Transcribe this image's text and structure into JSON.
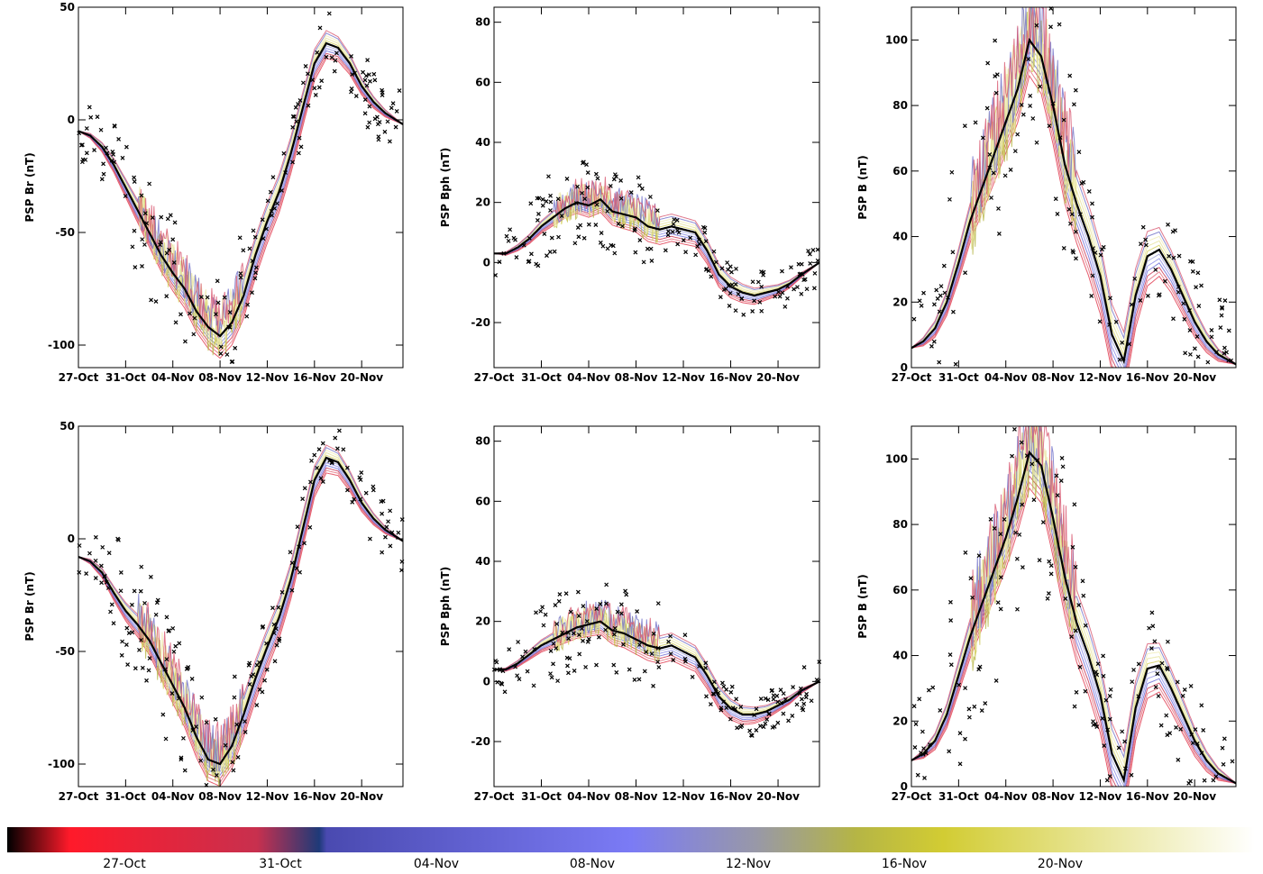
{
  "chart_data": {
    "figure_layout": "2x3 grid",
    "x_tick_labels": [
      "27-Oct",
      "31-Oct",
      "04-Nov",
      "08-Nov",
      "12-Nov",
      "16-Nov",
      "20-Nov"
    ],
    "x_tick_days": [
      0,
      4,
      8,
      12,
      16,
      20,
      24
    ],
    "x_range_days": [
      0,
      27.5
    ],
    "panels": [
      {
        "type": "line",
        "ylabel": "PSP Br (nT)",
        "ylim": [
          -110,
          50
        ],
        "yticks": [
          -100,
          -50,
          0,
          50
        ],
        "observed_points": "black crosses",
        "model_median": {
          "name": "",
          "x": [
            0,
            1,
            2,
            3,
            4,
            5,
            6,
            7,
            8,
            9,
            10,
            11,
            12,
            13,
            14,
            15,
            16,
            17,
            18,
            19,
            20,
            21,
            22,
            23,
            24,
            25,
            26,
            27.5
          ],
          "y": [
            -5,
            -7,
            -12,
            -20,
            -30,
            -40,
            -50,
            -60,
            -68,
            -75,
            -85,
            -92,
            -96,
            -90,
            -78,
            -60,
            -45,
            -32,
            -15,
            5,
            25,
            34,
            32,
            25,
            15,
            8,
            3,
            -2
          ]
        },
        "ensemble_spread_nT": 10
      },
      {
        "type": "line",
        "ylabel": "PSP Bph (nT)",
        "ylim": [
          -35,
          85
        ],
        "yticks": [
          -20,
          0,
          20,
          40,
          60,
          80
        ],
        "observed_points": "black crosses",
        "model_median": {
          "name": "",
          "x": [
            0,
            1,
            2,
            3,
            4,
            5,
            6,
            7,
            8,
            9,
            10,
            11,
            12,
            13,
            14,
            15,
            16,
            17,
            18,
            19,
            20,
            21,
            22,
            23,
            24,
            25,
            26,
            27.5
          ],
          "y": [
            3,
            3,
            5,
            8,
            12,
            15,
            18,
            20,
            19,
            21,
            17,
            16,
            15,
            12,
            11,
            12,
            11,
            10,
            4,
            -4,
            -8,
            -10,
            -11,
            -10,
            -9,
            -7,
            -4,
            0
          ]
        },
        "ensemble_spread_nT": 5
      },
      {
        "type": "line",
        "ylabel": "PSP B (nT)",
        "ylim": [
          0,
          110
        ],
        "yticks": [
          0,
          20,
          40,
          60,
          80,
          100
        ],
        "observed_points": "black crosses",
        "model_median": {
          "name": "",
          "x": [
            0,
            1,
            2,
            3,
            4,
            5,
            6,
            7,
            8,
            9,
            10,
            11,
            12,
            13,
            14,
            15,
            16,
            17,
            18,
            19,
            20,
            21,
            22,
            23,
            24,
            25,
            26,
            27.5
          ],
          "y": [
            6,
            8,
            12,
            20,
            32,
            45,
            55,
            65,
            75,
            85,
            100,
            95,
            80,
            62,
            50,
            40,
            28,
            10,
            2,
            22,
            34,
            36,
            30,
            22,
            14,
            8,
            4,
            1
          ]
        },
        "ensemble_spread_nT": 12
      },
      {
        "type": "line",
        "ylabel": "PSP Br (nT)",
        "ylim": [
          -110,
          50
        ],
        "yticks": [
          -100,
          -50,
          0,
          50
        ],
        "observed_points": "black crosses",
        "model_median": {
          "name": "",
          "x": [
            0,
            1,
            2,
            3,
            4,
            5,
            6,
            7,
            8,
            9,
            10,
            11,
            12,
            13,
            14,
            15,
            16,
            17,
            18,
            19,
            20,
            21,
            22,
            23,
            24,
            25,
            26,
            27.5
          ],
          "y": [
            -8,
            -10,
            -15,
            -24,
            -32,
            -38,
            -45,
            -55,
            -65,
            -75,
            -88,
            -98,
            -100,
            -92,
            -78,
            -62,
            -48,
            -35,
            -18,
            4,
            26,
            36,
            34,
            26,
            16,
            9,
            4,
            -1
          ]
        },
        "ensemble_spread_nT": 10
      },
      {
        "type": "line",
        "ylabel": "PSP Bph (nT)",
        "ylim": [
          -35,
          85
        ],
        "yticks": [
          -20,
          0,
          20,
          40,
          60,
          80
        ],
        "observed_points": "black crosses",
        "model_median": {
          "name": "",
          "x": [
            0,
            1,
            2,
            3,
            4,
            5,
            6,
            7,
            8,
            9,
            10,
            11,
            12,
            13,
            14,
            15,
            16,
            17,
            18,
            19,
            20,
            21,
            22,
            23,
            24,
            25,
            26,
            27.5
          ],
          "y": [
            4,
            4,
            6,
            9,
            12,
            14,
            16,
            18,
            19,
            20,
            17,
            16,
            14,
            12,
            11,
            12,
            10,
            8,
            2,
            -5,
            -9,
            -11,
            -11,
            -10,
            -8,
            -6,
            -3,
            0
          ]
        },
        "ensemble_spread_nT": 5
      },
      {
        "type": "line",
        "ylabel": "PSP B (nT)",
        "ylim": [
          0,
          110
        ],
        "yticks": [
          0,
          20,
          40,
          60,
          80,
          100
        ],
        "observed_points": "black crosses",
        "model_median": {
          "name": "",
          "x": [
            0,
            1,
            2,
            3,
            4,
            5,
            6,
            7,
            8,
            9,
            10,
            11,
            12,
            13,
            14,
            15,
            16,
            17,
            18,
            19,
            20,
            21,
            22,
            23,
            24,
            25,
            26,
            27.5
          ],
          "y": [
            8,
            10,
            14,
            22,
            34,
            46,
            56,
            66,
            76,
            88,
            102,
            98,
            82,
            64,
            50,
            40,
            28,
            10,
            2,
            24,
            36,
            37,
            30,
            22,
            14,
            8,
            4,
            1
          ]
        },
        "ensemble_spread_nT": 12
      }
    ],
    "colorbar": {
      "labels": [
        "27-Oct",
        "31-Oct",
        "04-Nov",
        "08-Nov",
        "12-Nov",
        "16-Nov",
        "20-Nov"
      ],
      "colors": [
        "#000000",
        "#ff1a2a",
        "#c8304e",
        "#1e3a78",
        "#4a4ab0",
        "#7b7bf5",
        "#9898a8",
        "#b5b545",
        "#d2cc33",
        "#ffffff"
      ]
    }
  }
}
